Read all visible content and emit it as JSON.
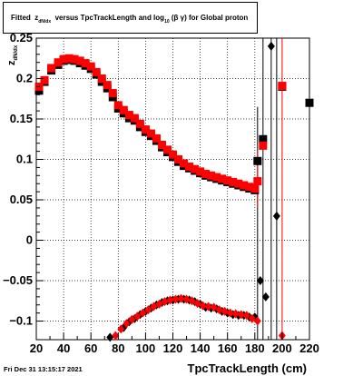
{
  "chart_data": {
    "type": "scatter",
    "title": {
      "prefix": "Fitted",
      "z": "z",
      "z_sub": "dN/dx",
      "middle": "versus TpcTrackLength and log",
      "log_sub": "10",
      "betagamma": "(β γ)",
      "suffix": "for Global proton"
    },
    "xlabel": "TpcTrackLength (cm)",
    "ylabel": "z",
    "ylabel_sub": "dN/dx",
    "xlim": [
      20,
      220
    ],
    "ylim": [
      -0.123,
      0.25
    ],
    "xticks": [
      20,
      40,
      60,
      80,
      100,
      120,
      140,
      160,
      180,
      200,
      220
    ],
    "yticks": [
      -0.1,
      -0.05,
      0,
      0.05,
      0.1,
      0.15,
      0.2,
      0.25
    ],
    "ytick_labels": [
      "−0.1",
      "−0.05",
      "0",
      "0.05",
      "0.1",
      "0.15",
      "0.2",
      "0.25"
    ],
    "grid": true,
    "series": [
      {
        "marker": "square",
        "color": "#000000",
        "x": [
          22,
          26,
          31,
          36,
          40,
          44,
          48,
          52,
          56,
          60,
          64,
          68,
          72,
          76,
          80,
          84,
          88,
          92,
          96,
          100,
          104,
          108,
          112,
          116,
          120,
          124,
          128,
          132,
          136,
          140,
          144,
          148,
          152,
          156,
          160,
          164,
          168,
          172,
          176,
          180,
          182,
          186,
          200,
          220
        ],
        "y": [
          0.185,
          0.196,
          0.21,
          0.217,
          0.222,
          0.223,
          0.222,
          0.219,
          0.216,
          0.212,
          0.205,
          0.196,
          0.188,
          0.177,
          0.163,
          0.157,
          0.151,
          0.148,
          0.14,
          0.134,
          0.129,
          0.123,
          0.115,
          0.109,
          0.103,
          0.097,
          0.092,
          0.089,
          0.086,
          0.083,
          0.08,
          0.078,
          0.076,
          0.074,
          0.072,
          0.07,
          0.068,
          0.066,
          0.064,
          0.062,
          0.098,
          0.125,
          0.19,
          0.17
        ]
      },
      {
        "marker": "square",
        "color": "#ff0000",
        "x": [
          22,
          26,
          31,
          36,
          40,
          44,
          48,
          52,
          56,
          60,
          64,
          68,
          72,
          76,
          80,
          84,
          88,
          92,
          96,
          100,
          104,
          108,
          112,
          116,
          120,
          124,
          128,
          132,
          136,
          140,
          144,
          148,
          152,
          156,
          160,
          164,
          168,
          172,
          176,
          180,
          182,
          186,
          200
        ],
        "y": [
          0.19,
          0.198,
          0.213,
          0.22,
          0.224,
          0.225,
          0.224,
          0.222,
          0.219,
          0.215,
          0.208,
          0.2,
          0.192,
          0.182,
          0.167,
          0.161,
          0.155,
          0.151,
          0.144,
          0.137,
          0.132,
          0.126,
          0.118,
          0.112,
          0.106,
          0.1,
          0.095,
          0.091,
          0.088,
          0.085,
          0.082,
          0.08,
          0.078,
          0.076,
          0.074,
          0.072,
          0.07,
          0.068,
          0.066,
          0.064,
          0.073,
          0.117,
          0.191
        ]
      },
      {
        "marker": "diamond",
        "color": "#000000",
        "x": [
          74,
          84,
          88,
          92,
          96,
          100,
          104,
          108,
          112,
          116,
          120,
          124,
          128,
          132,
          136,
          140,
          144,
          148,
          152,
          156,
          160,
          164,
          168,
          172,
          176,
          180,
          184,
          188,
          192,
          196
        ],
        "y": [
          -0.12,
          -0.108,
          -0.101,
          -0.097,
          -0.092,
          -0.088,
          -0.084,
          -0.08,
          -0.077,
          -0.075,
          -0.074,
          -0.073,
          -0.073,
          -0.074,
          -0.076,
          -0.079,
          -0.083,
          -0.084,
          -0.085,
          -0.088,
          -0.09,
          -0.092,
          -0.093,
          -0.093,
          -0.095,
          -0.095,
          -0.05,
          -0.07,
          0.24,
          0.03
        ]
      },
      {
        "marker": "diamond",
        "color": "#ff0000",
        "x": [
          78,
          82,
          86,
          90,
          94,
          98,
          102,
          106,
          110,
          114,
          118,
          122,
          126,
          130,
          134,
          138,
          142,
          146,
          150,
          154,
          158,
          162,
          166,
          170,
          174,
          178,
          182,
          200
        ],
        "y": [
          -0.118,
          -0.11,
          -0.103,
          -0.098,
          -0.094,
          -0.09,
          -0.086,
          -0.082,
          -0.079,
          -0.076,
          -0.074,
          -0.073,
          -0.072,
          -0.073,
          -0.075,
          -0.078,
          -0.081,
          -0.082,
          -0.083,
          -0.086,
          -0.088,
          -0.09,
          -0.091,
          -0.092,
          -0.093,
          -0.097,
          -0.1,
          -0.118
        ]
      }
    ],
    "error_bars": [
      {
        "x": 182,
        "ylo": -0.123,
        "yhi": 0.165,
        "color": "#000000"
      },
      {
        "x": 186,
        "ylo": -0.123,
        "yhi": 0.25,
        "color": "#000000"
      },
      {
        "x": 192,
        "ylo": -0.123,
        "yhi": 0.25,
        "color": "#000000"
      },
      {
        "x": 196,
        "ylo": -0.123,
        "yhi": 0.25,
        "color": "#000000"
      },
      {
        "x": 200,
        "ylo": -0.123,
        "yhi": 0.25,
        "color": "#ff0000"
      },
      {
        "x": 182,
        "ylo": 0.04,
        "yhi": 0.11,
        "color": "#ff0000"
      }
    ]
  },
  "footer": {
    "date": "Fri Dec 31 13:15:17 2021"
  }
}
